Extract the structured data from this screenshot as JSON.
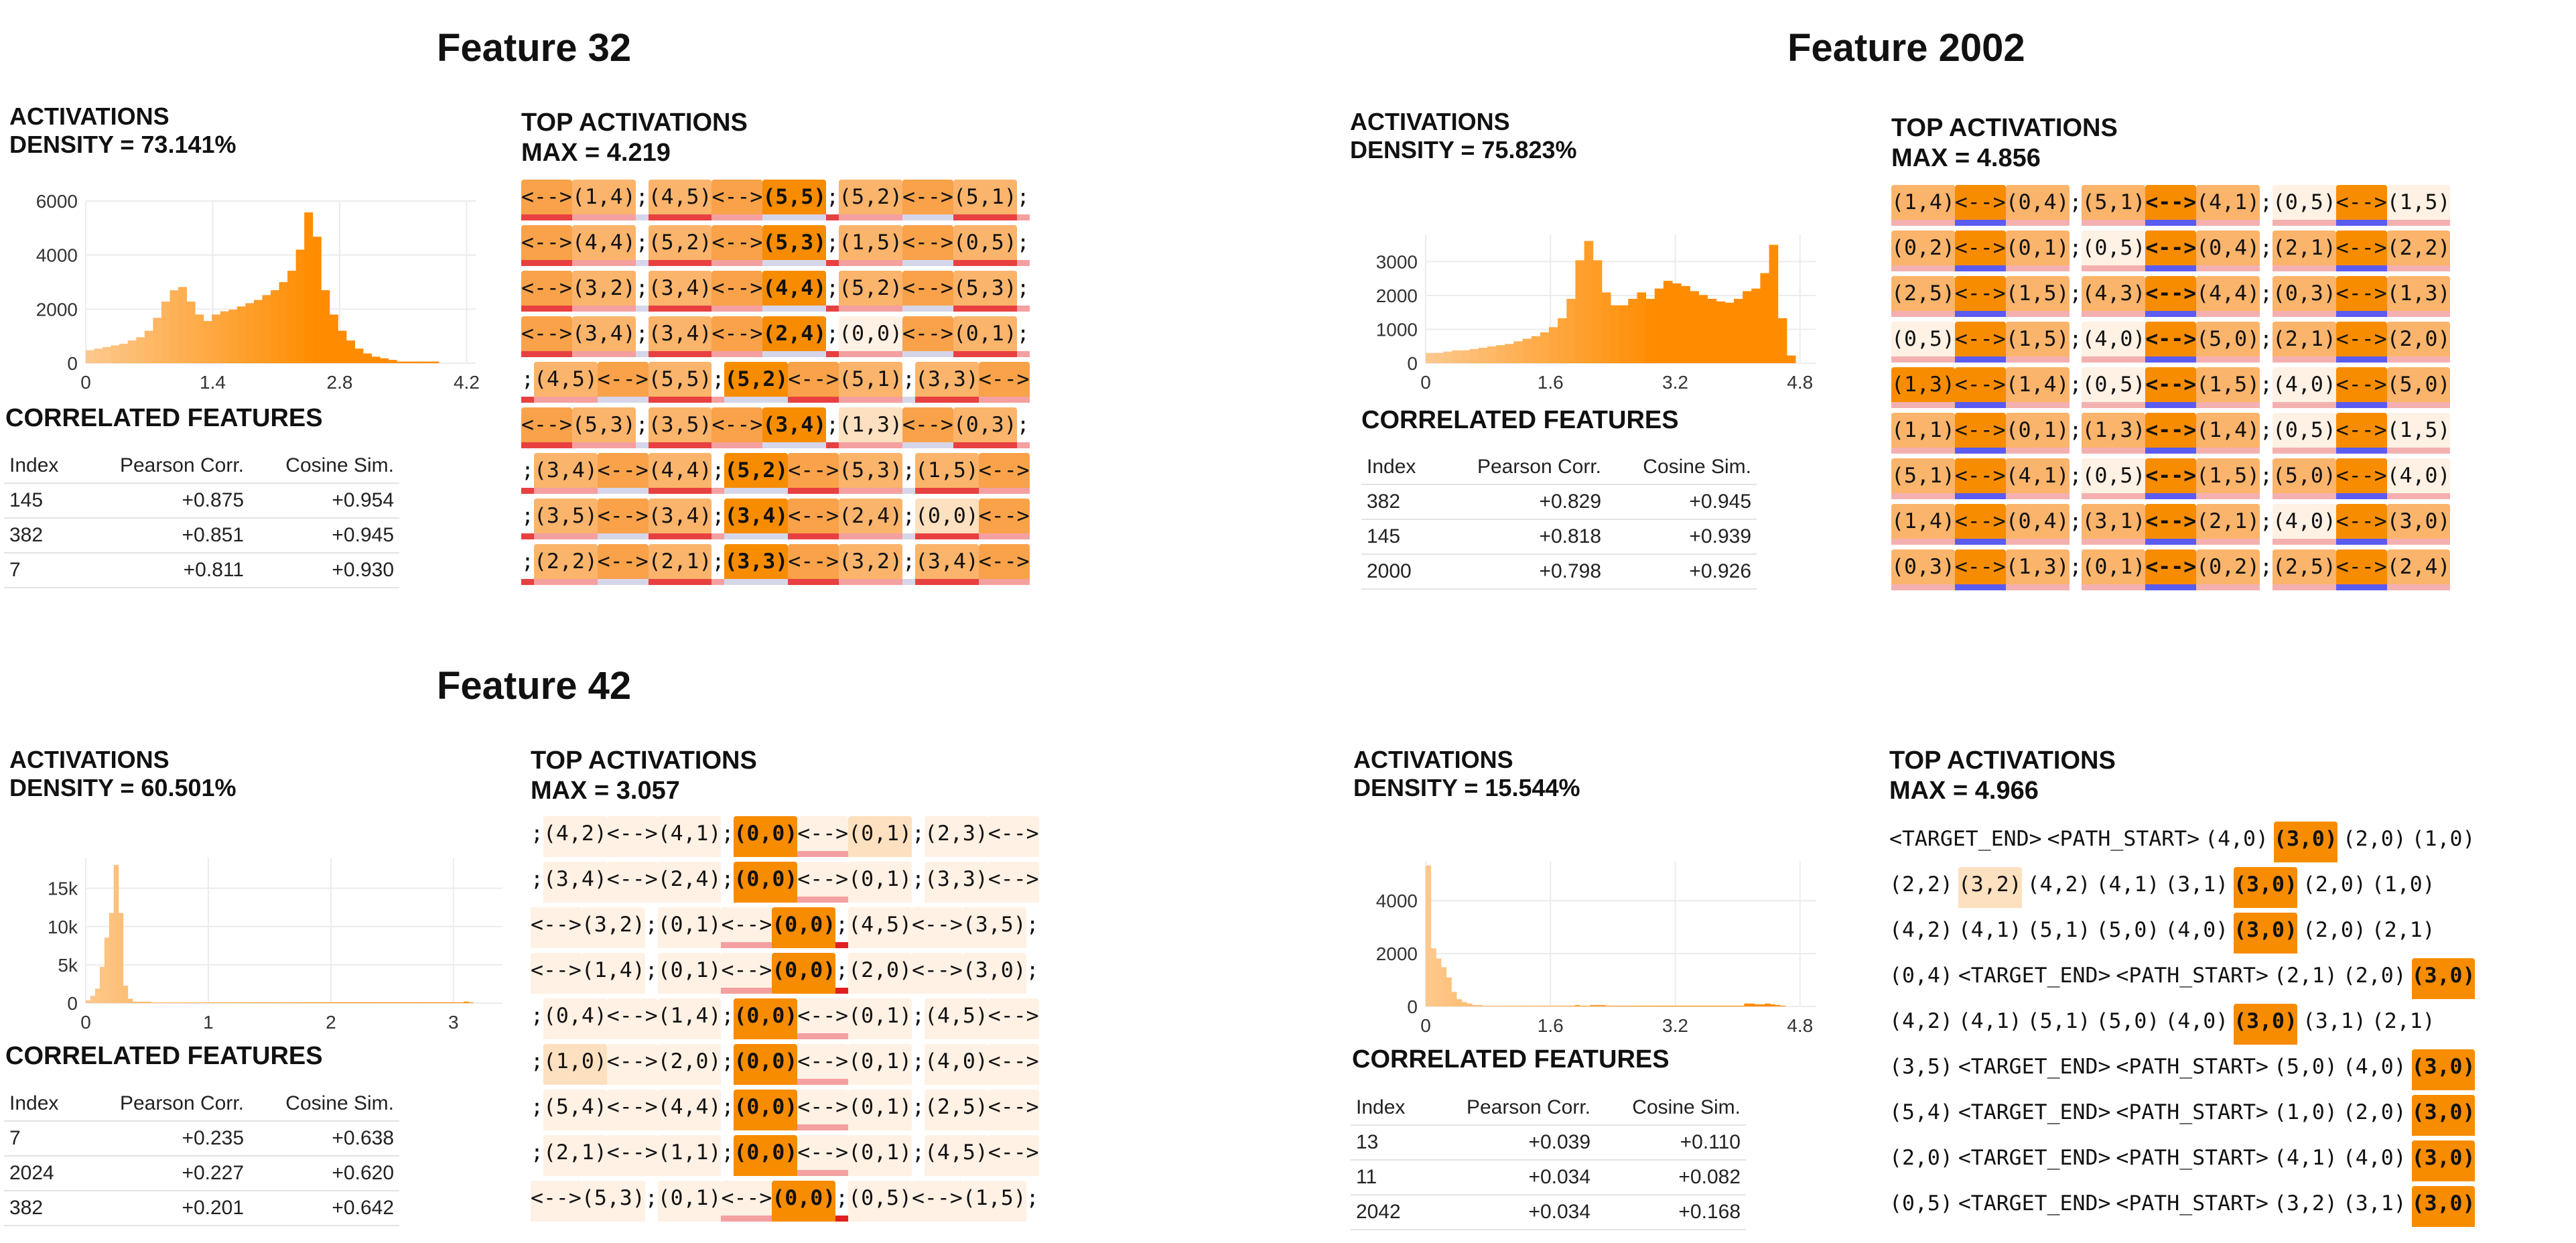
{
  "features": [
    {
      "title": "Feature 32",
      "activations_label": "ACTIVATIONS",
      "density_label": "DENSITY = 73.141%",
      "histogram": {
        "y_ticks": [
          "0",
          "2000",
          "4000",
          "6000"
        ],
        "x_ticks": [
          "0",
          "1.4",
          "2.8",
          "4.2"
        ],
        "ymax": 6000,
        "xmax": 4.3,
        "bars": [
          0.08,
          0.09,
          0.1,
          0.11,
          0.12,
          0.14,
          0.16,
          0.2,
          0.28,
          0.38,
          0.45,
          0.47,
          0.38,
          0.3,
          0.26,
          0.3,
          0.32,
          0.33,
          0.35,
          0.37,
          0.39,
          0.42,
          0.45,
          0.5,
          0.57,
          0.7,
          0.93,
          0.78,
          0.45,
          0.3,
          0.2,
          0.14,
          0.09,
          0.06,
          0.04,
          0.03,
          0.02,
          0.01,
          0.01,
          0.01,
          0.01,
          0.01,
          0,
          0
        ]
      },
      "top_activations_label": "TOP ACTIVATIONS",
      "max_label": "MAX = 4.219",
      "correlated_label": "CORRELATED FEATURES",
      "corr_headers": [
        "Index",
        "Pearson Corr.",
        "Cosine Sim."
      ],
      "corr_rows": [
        [
          "145",
          "+0.875",
          "+0.954"
        ],
        [
          "382",
          "+0.851",
          "+0.945"
        ],
        [
          "7",
          "+0.811",
          "+0.930"
        ]
      ],
      "sequences": [
        [
          "<-->",
          "(1,4)",
          ";",
          "(4,5)",
          "<-->",
          "(5,5)",
          ";",
          "(5,2)",
          "<-->",
          "(5,1)",
          ";"
        ],
        [
          "<-->",
          "(4,4)",
          ";",
          "(5,2)",
          "<-->",
          "(5,3)",
          ";",
          "(1,5)",
          "<-->",
          "(0,5)",
          ";"
        ],
        [
          "<-->",
          "(3,2)",
          ";",
          "(3,4)",
          "<-->",
          "(4,4)",
          ";",
          "(5,2)",
          "<-->",
          "(5,3)",
          ";"
        ],
        [
          "<-->",
          "(3,4)",
          ";",
          "(3,4)",
          "<-->",
          "(2,4)",
          ";",
          "(0,0)",
          "<-->",
          "(0,1)",
          ";"
        ],
        [
          ";",
          "(4,5)",
          "<-->",
          "(5,5)",
          ";",
          "(5,2)",
          "<-->",
          "(5,1)",
          ";",
          "(3,3)",
          "<-->"
        ],
        [
          "<-->",
          "(5,3)",
          ";",
          "(3,5)",
          "<-->",
          "(3,4)",
          ";",
          "(1,3)",
          "<-->",
          "(0,3)",
          ";"
        ],
        [
          ";",
          "(3,4)",
          "<-->",
          "(4,4)",
          ";",
          "(5,2)",
          "<-->",
          "(5,3)",
          ";",
          "(1,5)",
          "<-->"
        ],
        [
          ";",
          "(3,5)",
          "<-->",
          "(3,4)",
          ";",
          "(3,4)",
          "<-->",
          "(2,4)",
          ";",
          "(0,0)",
          "<-->"
        ],
        [
          ";",
          "(2,2)",
          "<-->",
          "(2,1)",
          ";",
          "(3,3)",
          "<-->",
          "(3,2)",
          ";",
          "(3,4)",
          "<-->"
        ]
      ],
      "seq_style": "f32"
    },
    {
      "title": "Feature 2002",
      "activations_label": "ACTIVATIONS",
      "density_label": "DENSITY = 75.823%",
      "histogram": {
        "y_ticks": [
          "0",
          "1000",
          "2000",
          "3000"
        ],
        "x_ticks": [
          "0",
          "1.6",
          "3.2",
          "4.8"
        ],
        "ymax": 3800,
        "xmax": 5.0,
        "bars": [
          0.08,
          0.08,
          0.09,
          0.1,
          0.1,
          0.11,
          0.12,
          0.13,
          0.14,
          0.15,
          0.17,
          0.19,
          0.21,
          0.24,
          0.28,
          0.35,
          0.5,
          0.8,
          0.95,
          0.8,
          0.55,
          0.45,
          0.45,
          0.5,
          0.55,
          0.5,
          0.58,
          0.64,
          0.62,
          0.6,
          0.56,
          0.53,
          0.5,
          0.48,
          0.47,
          0.5,
          0.56,
          0.58,
          0.7,
          0.92,
          0.35,
          0.06
        ]
      },
      "top_activations_label": "TOP ACTIVATIONS",
      "max_label": "MAX = 4.856",
      "correlated_label": "CORRELATED FEATURES",
      "corr_headers": [
        "Index",
        "Pearson Corr.",
        "Cosine Sim."
      ],
      "corr_rows": [
        [
          "382",
          "+0.829",
          "+0.945"
        ],
        [
          "145",
          "+0.818",
          "+0.939"
        ],
        [
          "2000",
          "+0.798",
          "+0.926"
        ]
      ],
      "sequences": [
        [
          "(1,4)",
          "<-->",
          "(0,4)",
          ";",
          "(5,1)",
          "<-->",
          "(4,1)",
          ";",
          "(0,5)",
          "<-->",
          "(1,5)"
        ],
        [
          "(0,2)",
          "<-->",
          "(0,1)",
          ";",
          "(0,5)",
          "<-->",
          "(0,4)",
          ";",
          "(2,1)",
          "<-->",
          "(2,2)"
        ],
        [
          "(2,5)",
          "<-->",
          "(1,5)",
          ";",
          "(4,3)",
          "<-->",
          "(4,4)",
          ";",
          "(0,3)",
          "<-->",
          "(1,3)"
        ],
        [
          "(0,5)",
          "<-->",
          "(1,5)",
          ";",
          "(4,0)",
          "<-->",
          "(5,0)",
          ";",
          "(2,1)",
          "<-->",
          "(2,0)"
        ],
        [
          "(1,3)",
          "<-->",
          "(1,4)",
          ";",
          "(0,5)",
          "<-->",
          "(1,5)",
          ";",
          "(4,0)",
          "<-->",
          "(5,0)"
        ],
        [
          "(1,1)",
          "<-->",
          "(0,1)",
          ";",
          "(1,3)",
          "<-->",
          "(1,4)",
          ";",
          "(0,5)",
          "<-->",
          "(1,5)"
        ],
        [
          "(5,1)",
          "<-->",
          "(4,1)",
          ";",
          "(0,5)",
          "<-->",
          "(1,5)",
          ";",
          "(5,0)",
          "<-->",
          "(4,0)"
        ],
        [
          "(1,4)",
          "<-->",
          "(0,4)",
          ";",
          "(3,1)",
          "<-->",
          "(2,1)",
          ";",
          "(4,0)",
          "<-->",
          "(3,0)"
        ],
        [
          "(0,3)",
          "<-->",
          "(1,3)",
          ";",
          "(0,1)",
          "<-->",
          "(0,2)",
          ";",
          "(2,5)",
          "<-->",
          "(2,4)"
        ]
      ],
      "seq_style": "f2002"
    },
    {
      "title": "Feature 42",
      "activations_label": "ACTIVATIONS",
      "density_label": "DENSITY = 60.501%",
      "histogram": {
        "y_ticks": [
          "0",
          "5k",
          "10k",
          "15k"
        ],
        "x_ticks": [
          "0",
          "1",
          "2",
          "3"
        ],
        "ymax": 19000,
        "xmax": 3.4,
        "bars": [
          0.02,
          0.05,
          0.1,
          0.25,
          0.45,
          0.62,
          0.95,
          0.62,
          0.12,
          0.03,
          0.01,
          0.01,
          0.01,
          0.01,
          0.005,
          0.005,
          0.005,
          0.005,
          0.005,
          0.005,
          0.005,
          0.005,
          0.005,
          0.005,
          0.005,
          0.005,
          0.005,
          0.005,
          0.005,
          0.005,
          0.005,
          0.005,
          0.005,
          0.005,
          0.005,
          0.005,
          0.005,
          0.005,
          0.005,
          0.005,
          0.005,
          0.005,
          0.005,
          0.005,
          0.005,
          0.005,
          0.005,
          0.005,
          0.005,
          0.005,
          0.005,
          0.005,
          0.005,
          0.005,
          0.005,
          0.005,
          0.005,
          0.005,
          0.005,
          0.005,
          0.005,
          0.005,
          0.005,
          0.005,
          0.005,
          0.005,
          0.005,
          0.005,
          0.005,
          0.005,
          0.005,
          0.005,
          0.005,
          0.005,
          0.005,
          0.005,
          0.005,
          0.005,
          0.005,
          0.005,
          0.005,
          0.01,
          0.005,
          0,
          0
        ]
      },
      "top_activations_label": "TOP ACTIVATIONS",
      "max_label": "MAX = 3.057",
      "correlated_label": "CORRELATED FEATURES",
      "corr_headers": [
        "Index",
        "Pearson Corr.",
        "Cosine Sim."
      ],
      "corr_rows": [
        [
          "7",
          "+0.235",
          "+0.638"
        ],
        [
          "2024",
          "+0.227",
          "+0.620"
        ],
        [
          "382",
          "+0.201",
          "+0.642"
        ]
      ],
      "sequences": [
        [
          ";",
          "(4,2)",
          "<-->",
          "(4,1)",
          ";",
          "(0,0)",
          "<-->",
          "(0,1)",
          ";",
          "(2,3)",
          "<-->"
        ],
        [
          ";",
          "(3,4)",
          "<-->",
          "(2,4)",
          ";",
          "(0,0)",
          "<-->",
          "(0,1)",
          ";",
          "(3,3)",
          "<-->"
        ],
        [
          "<-->",
          "(3,2)",
          ";",
          "(0,1)",
          "<-->",
          "(0,0)",
          ";",
          "(4,5)",
          "<-->",
          "(3,5)",
          ";"
        ],
        [
          "<-->",
          "(1,4)",
          ";",
          "(0,1)",
          "<-->",
          "(0,0)",
          ";",
          "(2,0)",
          "<-->",
          "(3,0)",
          ";"
        ],
        [
          ";",
          "(0,4)",
          "<-->",
          "(1,4)",
          ";",
          "(0,0)",
          "<-->",
          "(0,1)",
          ";",
          "(4,5)",
          "<-->"
        ],
        [
          ";",
          "(1,0)",
          "<-->",
          "(2,0)",
          ";",
          "(0,0)",
          "<-->",
          "(0,1)",
          ";",
          "(4,0)",
          "<-->"
        ],
        [
          ";",
          "(5,4)",
          "<-->",
          "(4,4)",
          ";",
          "(0,0)",
          "<-->",
          "(0,1)",
          ";",
          "(2,5)",
          "<-->"
        ],
        [
          ";",
          "(2,1)",
          "<-->",
          "(1,1)",
          ";",
          "(0,0)",
          "<-->",
          "(0,1)",
          ";",
          "(4,5)",
          "<-->"
        ],
        [
          "<-->",
          "(5,3)",
          ";",
          "(0,1)",
          "<-->",
          "(0,0)",
          ";",
          "(0,5)",
          "<-->",
          "(1,5)",
          ";"
        ]
      ],
      "seq_style": "f42"
    },
    {
      "title": "",
      "activations_label": "ACTIVATIONS",
      "density_label": "DENSITY = 15.544%",
      "histogram": {
        "y_ticks": [
          "0",
          "2000",
          "4000"
        ],
        "x_ticks": [
          "0",
          "1.6",
          "3.2",
          "4.8"
        ],
        "ymax": 5500,
        "xmax": 5.0,
        "bars": [
          0.97,
          0.4,
          0.33,
          0.27,
          0.2,
          0.1,
          0.05,
          0.03,
          0.02,
          0.01,
          0.01,
          0.005,
          0.005,
          0.005,
          0.005,
          0.005,
          0.005,
          0.005,
          0.005,
          0.005,
          0.005,
          0.005,
          0.005,
          0.005,
          0.005,
          0.005,
          0.005,
          0.005,
          0.005,
          0.01,
          0.005,
          0.005,
          0.01,
          0.01,
          0.01,
          0.005,
          0.005,
          0.005,
          0.005,
          0.005,
          0.005,
          0.005,
          0.005,
          0.005,
          0.005,
          0.005,
          0.005,
          0.005,
          0.005,
          0.005,
          0.005,
          0.005,
          0.005,
          0.005,
          0.005,
          0.005,
          0.005,
          0.005,
          0.005,
          0.005,
          0.005,
          0.005,
          0.02,
          0.02,
          0.015,
          0.015,
          0.02,
          0.015,
          0.01,
          0.005,
          0,
          0
        ]
      },
      "top_activations_label": "TOP ACTIVATIONS",
      "max_label": "MAX = 4.966",
      "correlated_label": "CORRELATED FEATURES",
      "corr_headers": [
        "Index",
        "Pearson Corr.",
        "Cosine Sim."
      ],
      "corr_rows": [
        [
          "13",
          "+0.039",
          "+0.110"
        ],
        [
          "11",
          "+0.034",
          "+0.082"
        ],
        [
          "2042",
          "+0.034",
          "+0.168"
        ]
      ],
      "sequences": [
        [
          "<TARGET_END>",
          "<PATH_START>",
          "(4,0)",
          "(3,0)",
          "(2,0)",
          "(1,0)"
        ],
        [
          "(2,2)",
          "(3,2)",
          "(4,2)",
          "(4,1)",
          "(3,1)",
          "(3,0)",
          "(2,0)",
          "(1,0)"
        ],
        [
          "(4,2)",
          "(4,1)",
          "(5,1)",
          "(5,0)",
          "(4,0)",
          "(3,0)",
          "(2,0)",
          "(2,1)"
        ],
        [
          "(0,4)",
          "<TARGET_END>",
          "<PATH_START>",
          "(2,1)",
          "(2,0)",
          "(3,0)"
        ],
        [
          "(4,2)",
          "(4,1)",
          "(5,1)",
          "(5,0)",
          "(4,0)",
          "(3,0)",
          "(3,1)",
          "(2,1)"
        ],
        [
          "(3,5)",
          "<TARGET_END>",
          "<PATH_START>",
          "(5,0)",
          "(4,0)",
          "(3,0)"
        ],
        [
          "(5,4)",
          "<TARGET_END>",
          "<PATH_START>",
          "(1,0)",
          "(2,0)",
          "(3,0)"
        ],
        [
          "(2,0)",
          "<TARGET_END>",
          "<PATH_START>",
          "(4,1)",
          "(4,0)",
          "(3,0)"
        ],
        [
          "(0,5)",
          "<TARGET_END>",
          "<PATH_START>",
          "(3,2)",
          "(3,1)",
          "(3,0)"
        ]
      ],
      "seq_style": "f4"
    }
  ]
}
